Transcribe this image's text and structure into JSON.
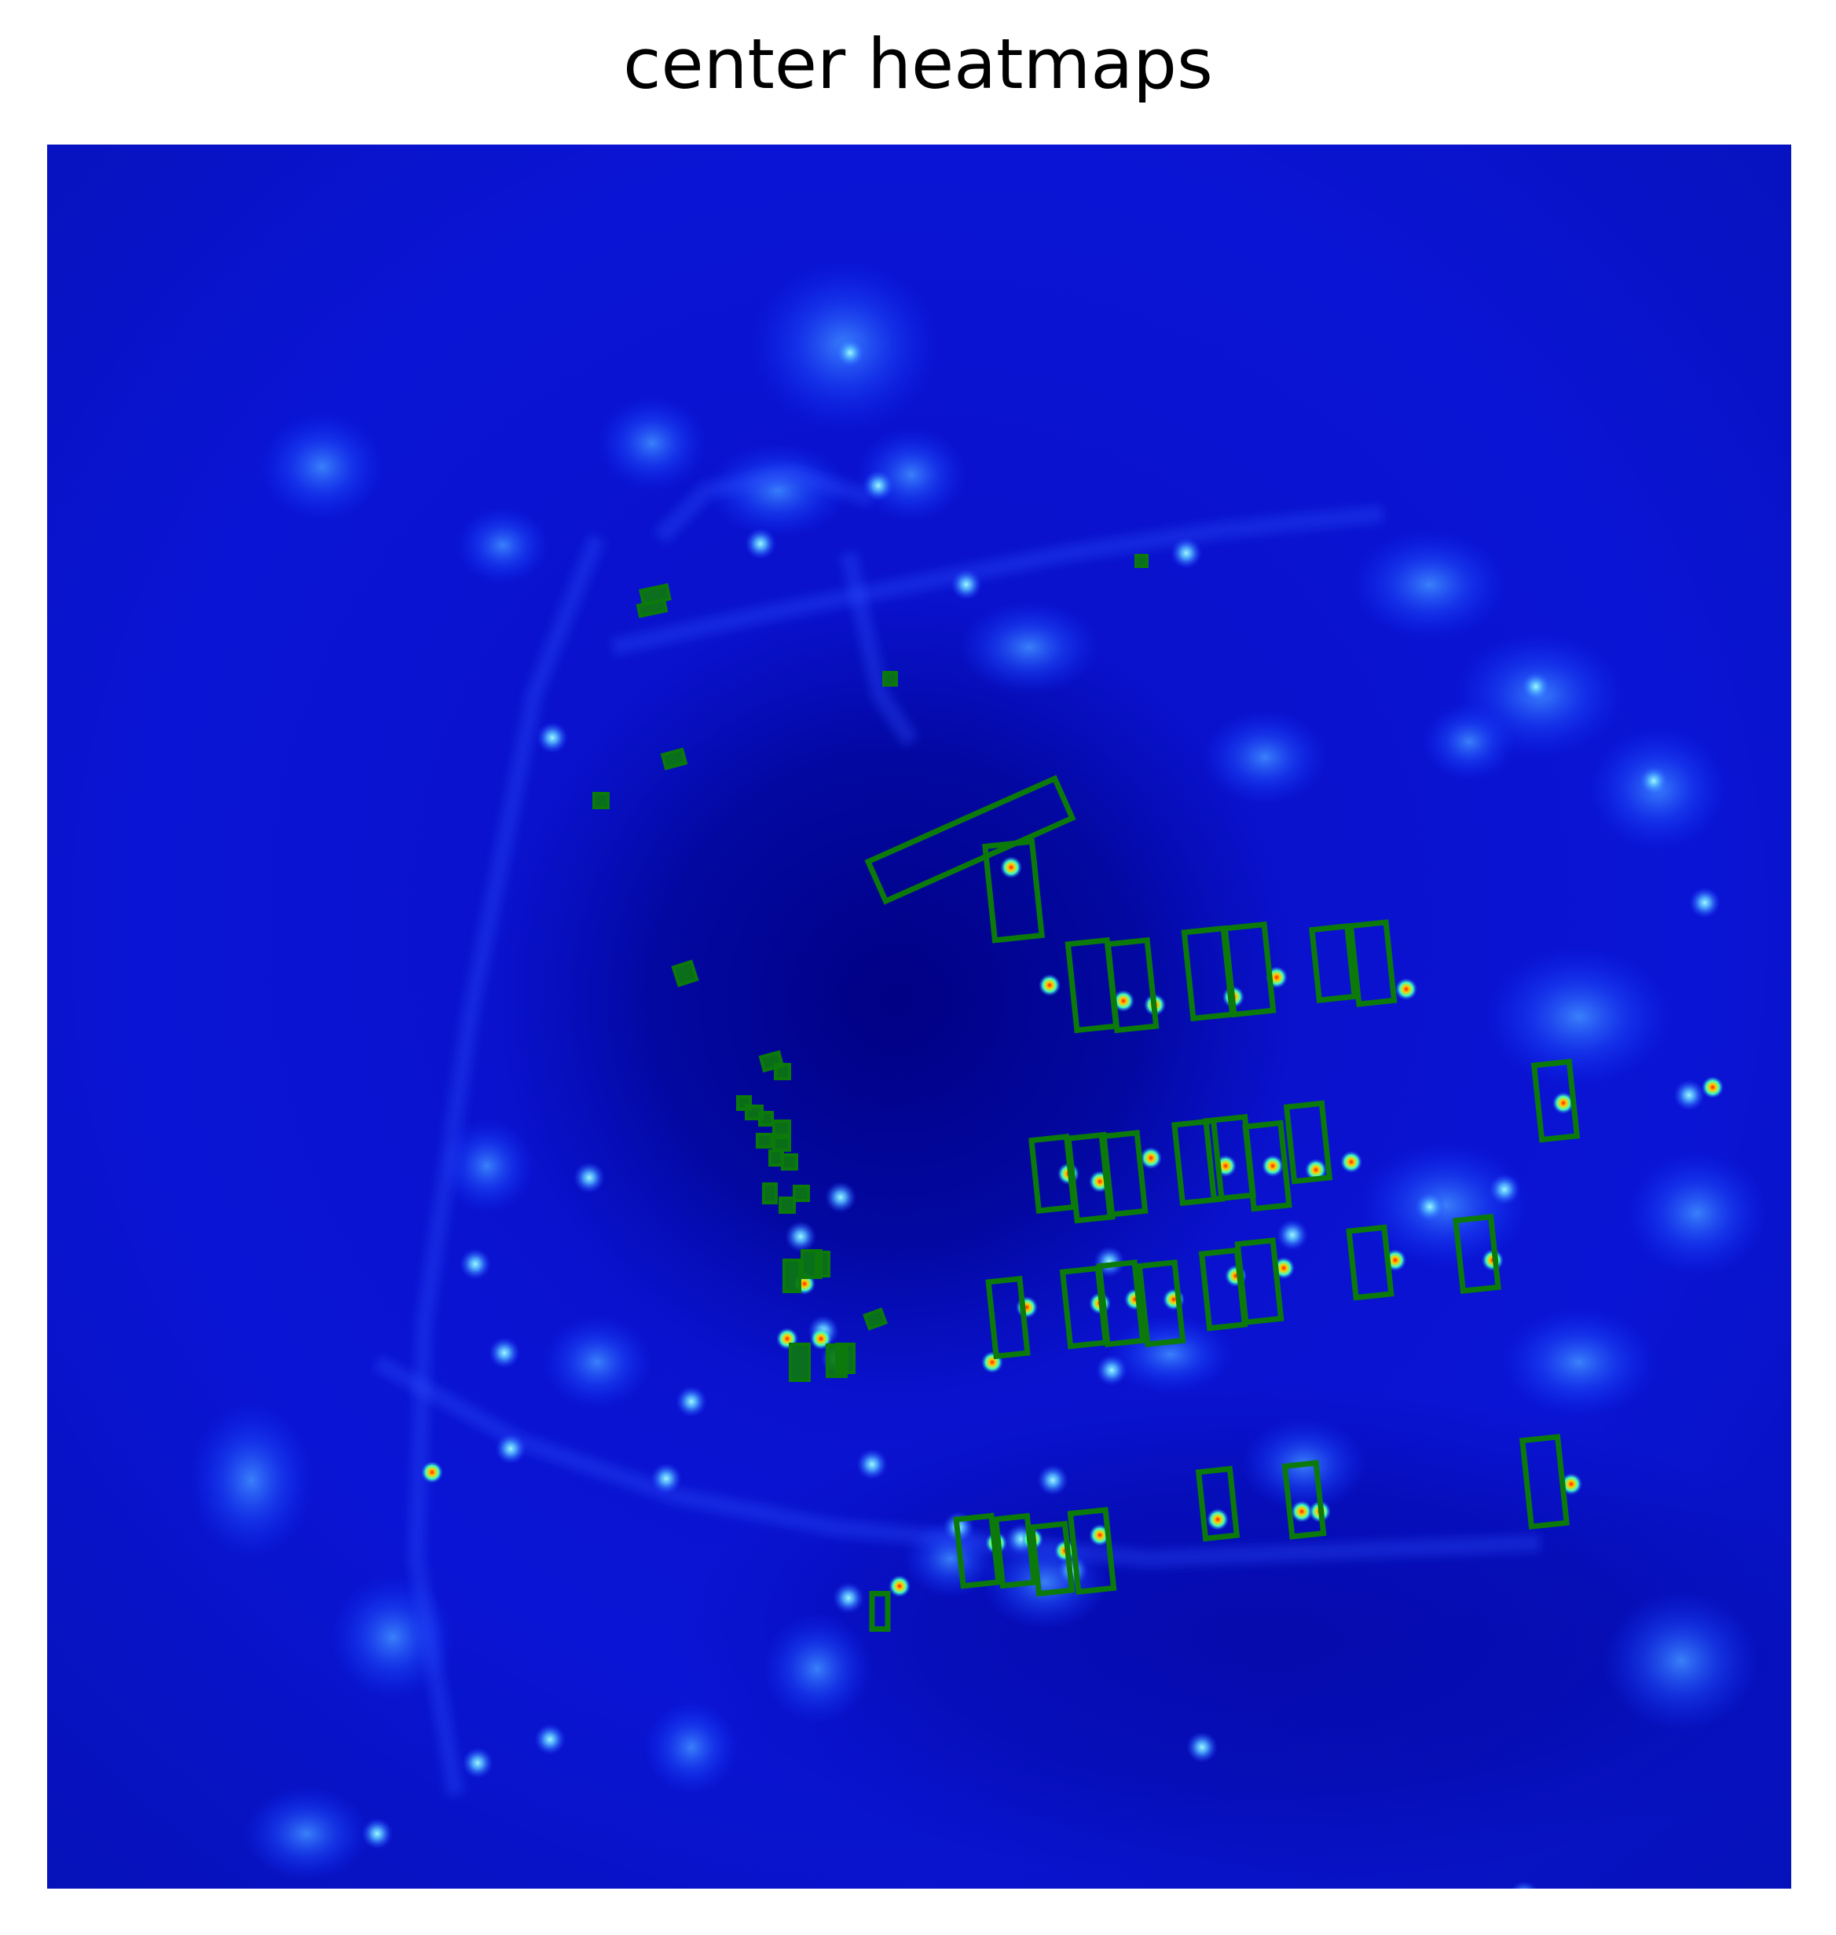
{
  "figure": {
    "title": "center heatmaps"
  },
  "colors": {
    "background_deep": "#00008b",
    "background_mid": "#0a14d8",
    "background_glow": "#1e5cff",
    "hotspot_cyan": "#00ffff",
    "hotspot_yellow": "#ffff00",
    "hotspot_red": "#ff2000",
    "box_stroke": "#0b7a0b"
  },
  "colormap": "jet",
  "legend": "none",
  "axes": "off"
}
